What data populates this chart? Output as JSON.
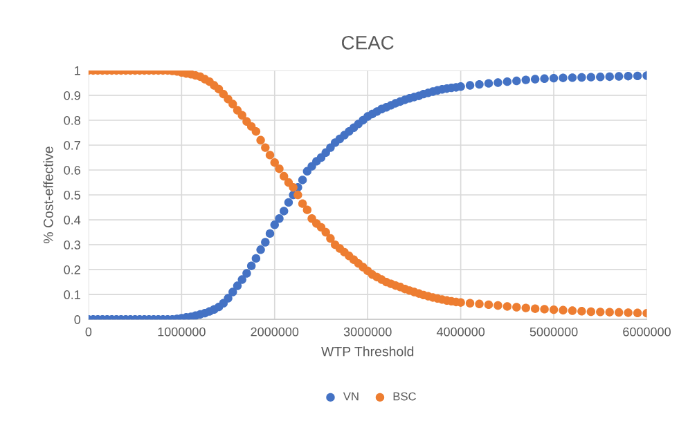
{
  "chart_data": {
    "type": "scatter",
    "title": "CEAC",
    "xlabel": "WTP Threshold",
    "ylabel": "% Cost-effective",
    "x": [
      0,
      50000,
      100000,
      150000,
      200000,
      250000,
      300000,
      350000,
      400000,
      450000,
      500000,
      550000,
      600000,
      650000,
      700000,
      750000,
      800000,
      850000,
      900000,
      950000,
      1000000,
      1050000,
      1100000,
      1150000,
      1200000,
      1250000,
      1300000,
      1350000,
      1400000,
      1450000,
      1500000,
      1550000,
      1600000,
      1650000,
      1700000,
      1750000,
      1800000,
      1850000,
      1900000,
      1950000,
      2000000,
      2050000,
      2100000,
      2150000,
      2200000,
      2250000,
      2300000,
      2350000,
      2400000,
      2450000,
      2500000,
      2550000,
      2600000,
      2650000,
      2700000,
      2750000,
      2800000,
      2850000,
      2900000,
      2950000,
      3000000,
      3050000,
      3100000,
      3150000,
      3200000,
      3250000,
      3300000,
      3350000,
      3400000,
      3450000,
      3500000,
      3550000,
      3600000,
      3650000,
      3700000,
      3750000,
      3800000,
      3850000,
      3900000,
      3950000,
      4000000,
      4100000,
      4200000,
      4300000,
      4400000,
      4500000,
      4600000,
      4700000,
      4800000,
      4900000,
      5000000,
      5100000,
      5200000,
      5300000,
      5400000,
      5500000,
      5600000,
      5700000,
      5800000,
      5900000,
      6000000
    ],
    "series": [
      {
        "name": "VN",
        "color": "#4472c4",
        "values": [
          0,
          0,
          0,
          0,
          0,
          0,
          0,
          0,
          0,
          0,
          0,
          0,
          0,
          0,
          0,
          0,
          0,
          0,
          0,
          0.002,
          0.005,
          0.008,
          0.01,
          0.015,
          0.02,
          0.025,
          0.032,
          0.04,
          0.05,
          0.065,
          0.085,
          0.11,
          0.135,
          0.16,
          0.185,
          0.215,
          0.245,
          0.28,
          0.31,
          0.345,
          0.38,
          0.405,
          0.435,
          0.47,
          0.5,
          0.53,
          0.56,
          0.595,
          0.615,
          0.635,
          0.65,
          0.67,
          0.69,
          0.71,
          0.725,
          0.74,
          0.755,
          0.77,
          0.785,
          0.8,
          0.815,
          0.825,
          0.835,
          0.845,
          0.852,
          0.86,
          0.868,
          0.875,
          0.882,
          0.888,
          0.893,
          0.898,
          0.905,
          0.91,
          0.915,
          0.92,
          0.924,
          0.927,
          0.93,
          0.932,
          0.935,
          0.94,
          0.944,
          0.948,
          0.951,
          0.955,
          0.958,
          0.962,
          0.965,
          0.967,
          0.969,
          0.97,
          0.971,
          0.972,
          0.973,
          0.974,
          0.975,
          0.976,
          0.977,
          0.978,
          0.979
        ]
      },
      {
        "name": "BSC",
        "color": "#ed7d31",
        "values": [
          1,
          1,
          1,
          1,
          1,
          1,
          1,
          1,
          1,
          1,
          1,
          1,
          1,
          1,
          1,
          1,
          1,
          1,
          0.998,
          0.996,
          0.992,
          0.988,
          0.985,
          0.98,
          0.975,
          0.965,
          0.955,
          0.94,
          0.925,
          0.905,
          0.885,
          0.865,
          0.84,
          0.82,
          0.795,
          0.775,
          0.755,
          0.72,
          0.69,
          0.66,
          0.63,
          0.605,
          0.575,
          0.55,
          0.53,
          0.5,
          0.465,
          0.44,
          0.405,
          0.385,
          0.37,
          0.35,
          0.325,
          0.3,
          0.285,
          0.27,
          0.255,
          0.24,
          0.225,
          0.21,
          0.195,
          0.18,
          0.17,
          0.16,
          0.15,
          0.143,
          0.136,
          0.13,
          0.122,
          0.116,
          0.11,
          0.104,
          0.098,
          0.093,
          0.088,
          0.084,
          0.08,
          0.076,
          0.073,
          0.07,
          0.068,
          0.065,
          0.062,
          0.059,
          0.056,
          0.052,
          0.049,
          0.046,
          0.043,
          0.041,
          0.039,
          0.037,
          0.035,
          0.033,
          0.031,
          0.03,
          0.029,
          0.028,
          0.027,
          0.026,
          0.025
        ]
      }
    ],
    "xlim": [
      0,
      6000000
    ],
    "xticks": [
      0,
      1000000,
      2000000,
      3000000,
      4000000,
      5000000,
      6000000
    ],
    "ylim": [
      0,
      1
    ],
    "yticks": [
      0,
      0.1,
      0.2,
      0.3,
      0.4,
      0.5,
      0.6,
      0.7,
      0.8,
      0.9,
      1
    ],
    "grid": true,
    "legend": "bottom",
    "marker": "circle"
  }
}
